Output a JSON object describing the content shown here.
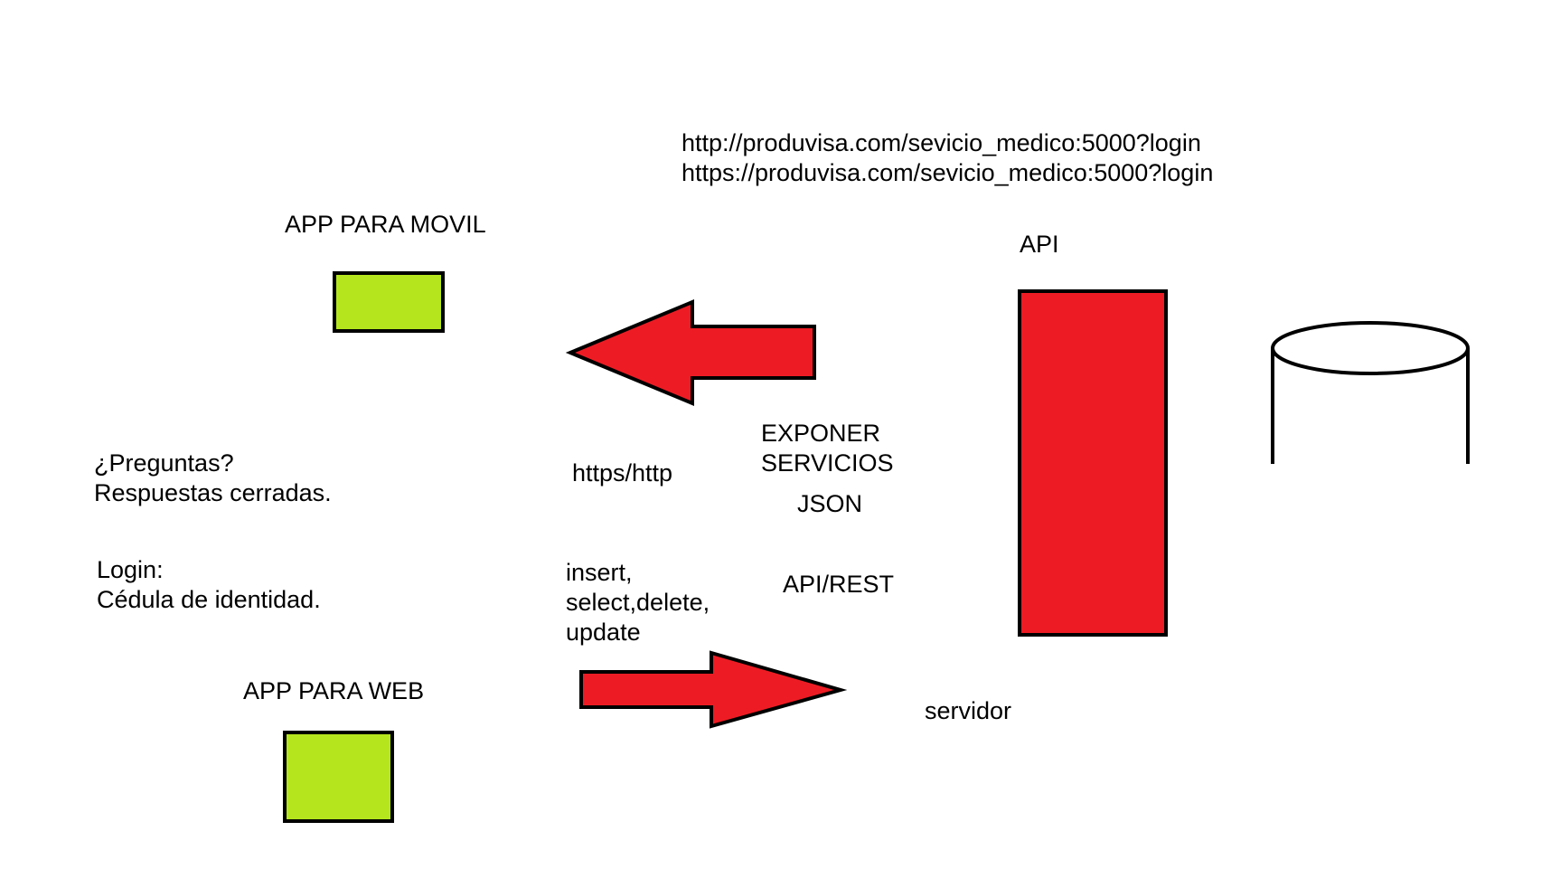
{
  "colors": {
    "app_box_fill": "#b5e61d",
    "arrow_fill": "#ed1c24",
    "api_fill": "#ed1c24",
    "outline": "#000000",
    "background": "#ffffff"
  },
  "urls": {
    "http": "http://produvisa.com/sevicio_medico:5000?login",
    "https": "https://produvisa.com/sevicio_medico:5000?login"
  },
  "app_movil": {
    "label": "APP PARA MOVIL"
  },
  "app_web": {
    "label": "APP PARA WEB"
  },
  "api": {
    "label": "API"
  },
  "server": {
    "label": "servidor"
  },
  "database": {
    "icon": "database-cylinder-icon"
  },
  "notes": {
    "preguntas": [
      "¿Preguntas?",
      "Respuestas cerradas."
    ],
    "login": [
      "Login:",
      "Cédula de identidad."
    ]
  },
  "protocol": {
    "label": "https/http"
  },
  "exponer": {
    "lines": [
      "EXPONER",
      "SERVICIOS"
    ]
  },
  "format": {
    "label": "JSON"
  },
  "operations": {
    "lines": [
      "insert,",
      "select,delete,",
      "update"
    ]
  },
  "api_rest": {
    "label": "API/REST"
  },
  "arrows": {
    "response_icon": "left-arrow-icon",
    "request_icon": "right-arrow-icon"
  }
}
